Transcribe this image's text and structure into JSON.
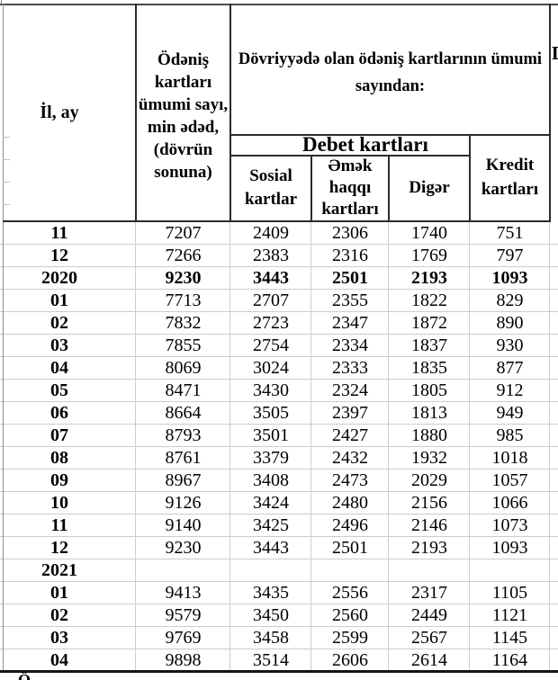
{
  "chart_data": {
    "type": "table",
    "header": {
      "col_year_month": "İl, ay",
      "col_total": "Ödəniş kartları ümumi sayı, min ədəd, (dövrün sonuna)",
      "col_total_lines": [
        "Ödəniş",
        "kartları",
        "ümumi sayı,",
        "min ədəd,",
        "(dövrün",
        "sonuna)"
      ],
      "group": "Dövriyyədə olan ödəniş kartlarının ümumi sayından:",
      "group_lines": [
        "Dövriyyədə olan ödəniş kartlarının ümumi",
        "sayından:"
      ],
      "debet_group": "Debet kartları",
      "sosial": "Sosial kartlar",
      "sosial_lines": [
        "Sosial",
        "kartlar"
      ],
      "emek": "Əmək haqqı kartları",
      "emek_lines": [
        "Əmək",
        "haqqı",
        "kartları"
      ],
      "diger": "Digər",
      "kredit": "Kredit kartları",
      "kredit_lines": [
        "Kredit",
        "kartları"
      ]
    },
    "columns": [
      "İl, ay",
      "Ödəniş kartları ümumi sayı, min ədəd, (dövrün sonuna)",
      "Sosial kartlar",
      "Əmək haqqı kartları",
      "Digər",
      "Kredit kartları"
    ],
    "rows": [
      {
        "type": "month",
        "label": "11",
        "values": [
          "7207",
          "2409",
          "2306",
          "1740",
          "751"
        ]
      },
      {
        "type": "month",
        "label": "12",
        "values": [
          "7266",
          "2383",
          "2316",
          "1769",
          "797"
        ]
      },
      {
        "type": "year",
        "label": "2020",
        "values": [
          "9230",
          "3443",
          "2501",
          "2193",
          "1093"
        ]
      },
      {
        "type": "month",
        "label": "01",
        "values": [
          "7713",
          "2707",
          "2355",
          "1822",
          "829"
        ]
      },
      {
        "type": "month",
        "label": "02",
        "values": [
          "7832",
          "2723",
          "2347",
          "1872",
          "890"
        ]
      },
      {
        "type": "month",
        "label": "03",
        "values": [
          "7855",
          "2754",
          "2334",
          "1837",
          "930"
        ]
      },
      {
        "type": "month",
        "label": "04",
        "values": [
          "8069",
          "3024",
          "2333",
          "1835",
          "877"
        ]
      },
      {
        "type": "month",
        "label": "05",
        "values": [
          "8471",
          "3430",
          "2324",
          "1805",
          "912"
        ]
      },
      {
        "type": "month",
        "label": "06",
        "values": [
          "8664",
          "3505",
          "2397",
          "1813",
          "949"
        ]
      },
      {
        "type": "month",
        "label": "07",
        "values": [
          "8793",
          "3501",
          "2427",
          "1880",
          "985"
        ]
      },
      {
        "type": "month",
        "label": "08",
        "values": [
          "8761",
          "3379",
          "2432",
          "1932",
          "1018"
        ]
      },
      {
        "type": "month",
        "label": "09",
        "values": [
          "8967",
          "3408",
          "2473",
          "2029",
          "1057"
        ]
      },
      {
        "type": "month",
        "label": "10",
        "values": [
          "9126",
          "3424",
          "2480",
          "2156",
          "1066"
        ]
      },
      {
        "type": "month",
        "label": "11",
        "values": [
          "9140",
          "3425",
          "2496",
          "2146",
          "1073"
        ]
      },
      {
        "type": "month",
        "label": "12",
        "values": [
          "9230",
          "3443",
          "2501",
          "2193",
          "1093"
        ]
      },
      {
        "type": "year",
        "label": "2021",
        "values": [
          "",
          "",
          "",
          "",
          ""
        ]
      },
      {
        "type": "month",
        "label": "01",
        "values": [
          "9413",
          "3435",
          "2556",
          "2317",
          "1105"
        ]
      },
      {
        "type": "month",
        "label": "02",
        "values": [
          "9579",
          "3450",
          "2560",
          "2449",
          "1121"
        ]
      },
      {
        "type": "month",
        "label": "03",
        "values": [
          "9769",
          "3458",
          "2599",
          "2567",
          "1145"
        ]
      },
      {
        "type": "month",
        "label": "04",
        "values": [
          "9898",
          "3514",
          "2606",
          "2614",
          "1164"
        ]
      }
    ],
    "fragments": {
      "right_edge_letter": "D",
      "footnote_start": "Ö"
    },
    "colors": {
      "border_dark": "#2b2b2b",
      "gridline": "#cccccc",
      "text": "#000000"
    }
  }
}
